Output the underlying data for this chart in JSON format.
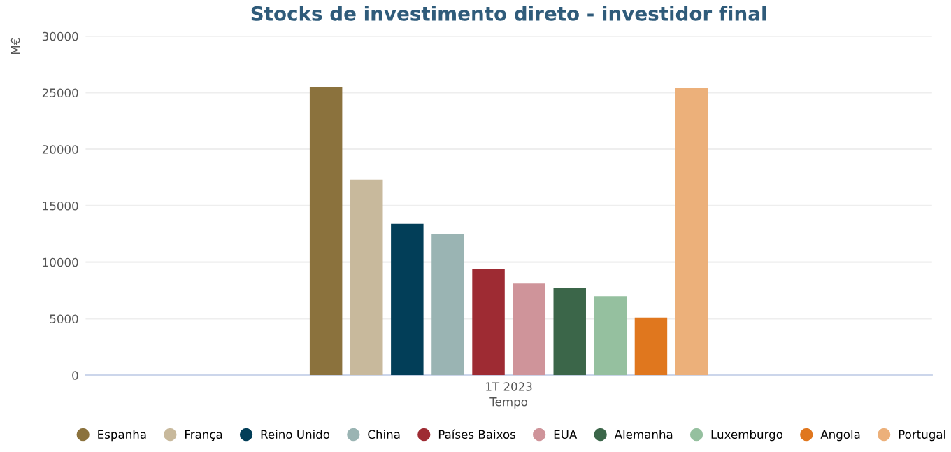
{
  "chart_data": {
    "type": "bar",
    "title": "Stocks de investimento direto - investidor final",
    "xlabel": "Tempo",
    "ylabel": "M€",
    "categories": [
      "1T 2023"
    ],
    "series": [
      {
        "name": "Espanha",
        "color": "#8b723d",
        "values": [
          25500
        ]
      },
      {
        "name": "França",
        "color": "#c8b99c",
        "values": [
          17300
        ]
      },
      {
        "name": "Reino Unido",
        "color": "#023e58",
        "values": [
          13400
        ]
      },
      {
        "name": "China",
        "color": "#9ab4b3",
        "values": [
          12500
        ]
      },
      {
        "name": "Países Baixos",
        "color": "#9e2b33",
        "values": [
          9400
        ]
      },
      {
        "name": "EUA",
        "color": "#cf949a",
        "values": [
          8100
        ]
      },
      {
        "name": "Alemanha",
        "color": "#3b6649",
        "values": [
          7700
        ]
      },
      {
        "name": "Luxemburgo",
        "color": "#95c09f",
        "values": [
          7000
        ]
      },
      {
        "name": "Angola",
        "color": "#e0771e",
        "values": [
          5100
        ]
      },
      {
        "name": "Portugal",
        "color": "#ecb07a",
        "values": [
          25400
        ]
      }
    ],
    "ylim": [
      0,
      30000
    ],
    "yticks": [
      0,
      5000,
      10000,
      15000,
      20000,
      25000,
      30000
    ],
    "grid": "y",
    "legend": "bottom"
  }
}
